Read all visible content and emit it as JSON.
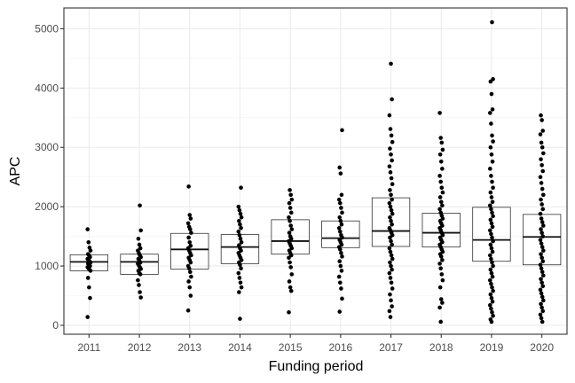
{
  "chart_data": {
    "type": "box",
    "xlabel": "Funding period",
    "ylabel": "APC",
    "ylim": [
      -150,
      5350
    ],
    "yticks": [
      "0",
      "1000",
      "2000",
      "3000",
      "4000",
      "5000"
    ],
    "grid": true,
    "categories": [
      "2011",
      "2012",
      "2013",
      "2014",
      "2015",
      "2016",
      "2017",
      "2018",
      "2019",
      "2020"
    ],
    "boxes": [
      {
        "q1": 920,
        "median": 1070,
        "q3": 1190,
        "low": 920,
        "high": 1200
      },
      {
        "q1": 860,
        "median": 1070,
        "q3": 1200,
        "low": 860,
        "high": 1220
      },
      {
        "q1": 950,
        "median": 1280,
        "q3": 1550,
        "low": 950,
        "high": 1560
      },
      {
        "q1": 1040,
        "median": 1320,
        "q3": 1530,
        "low": 1040,
        "high": 1540
      },
      {
        "q1": 1200,
        "median": 1420,
        "q3": 1780,
        "low": 1200,
        "high": 1790
      },
      {
        "q1": 1310,
        "median": 1470,
        "q3": 1760,
        "low": 1310,
        "high": 1770
      },
      {
        "q1": 1330,
        "median": 1590,
        "q3": 2150,
        "low": 1330,
        "high": 2150
      },
      {
        "q1": 1320,
        "median": 1560,
        "q3": 1890,
        "low": 1320,
        "high": 1890
      },
      {
        "q1": 1080,
        "median": 1440,
        "q3": 1990,
        "low": 1080,
        "high": 1990
      },
      {
        "q1": 1020,
        "median": 1490,
        "q3": 1870,
        "low": 1020,
        "high": 1870
      }
    ],
    "points": [
      {
        "category": "2011",
        "y": [
          1620,
          1400,
          1310,
          1260,
          1200,
          1180,
          1150,
          1120,
          1100,
          1080,
          1060,
          1040,
          1020,
          1000,
          980,
          960,
          940,
          920,
          800,
          640,
          460,
          140
        ]
      },
      {
        "category": "2012",
        "y": [
          2020,
          1600,
          1460,
          1360,
          1300,
          1260,
          1220,
          1180,
          1150,
          1120,
          1090,
          1060,
          1040,
          1010,
          980,
          950,
          920,
          880,
          860,
          760,
          680,
          560,
          470
        ]
      },
      {
        "category": "2013",
        "y": [
          2340,
          1860,
          1800,
          1720,
          1660,
          1620,
          1560,
          1480,
          1400,
          1340,
          1300,
          1260,
          1220,
          1180,
          1140,
          1100,
          1060,
          1000,
          960,
          900,
          820,
          740,
          640,
          500,
          250
        ]
      },
      {
        "category": "2014",
        "y": [
          2320,
          2000,
          1940,
          1880,
          1820,
          1760,
          1700,
          1640,
          1580,
          1520,
          1460,
          1400,
          1350,
          1300,
          1260,
          1220,
          1180,
          1140,
          1100,
          1060,
          1020,
          960,
          880,
          800,
          720,
          640,
          560,
          110
        ]
      },
      {
        "category": "2015",
        "y": [
          2280,
          2200,
          2120,
          2060,
          1980,
          1900,
          1820,
          1760,
          1680,
          1620,
          1560,
          1500,
          1460,
          1420,
          1380,
          1340,
          1300,
          1260,
          1220,
          1180,
          1140,
          1060,
          980,
          860,
          740,
          640,
          580,
          220
        ]
      },
      {
        "category": "2016",
        "y": [
          3290,
          2660,
          2560,
          2200,
          2120,
          2060,
          1980,
          1900,
          1820,
          1760,
          1700,
          1640,
          1580,
          1520,
          1480,
          1440,
          1400,
          1360,
          1320,
          1280,
          1220,
          1160,
          1080,
          1000,
          920,
          820,
          720,
          620,
          450,
          230
        ]
      },
      {
        "category": "2017",
        "y": [
          4410,
          3810,
          3540,
          3310,
          3200,
          3090,
          2980,
          2880,
          2780,
          2680,
          2580,
          2480,
          2380,
          2280,
          2200,
          2120,
          2060,
          2000,
          1940,
          1880,
          1820,
          1760,
          1700,
          1640,
          1600,
          1560,
          1520,
          1480,
          1420,
          1360,
          1300,
          1240,
          1180,
          1120,
          1060,
          1000,
          940,
          880,
          800,
          720,
          620,
          520,
          420,
          320,
          240,
          140
        ]
      },
      {
        "category": "2018",
        "y": [
          3580,
          3160,
          3080,
          2960,
          2880,
          2760,
          2640,
          2520,
          2420,
          2320,
          2240,
          2160,
          2080,
          2020,
          1960,
          1900,
          1850,
          1800,
          1760,
          1720,
          1680,
          1640,
          1600,
          1560,
          1520,
          1480,
          1440,
          1400,
          1360,
          1320,
          1280,
          1240,
          1200,
          1160,
          1100,
          1040,
          960,
          860,
          760,
          640,
          440,
          380,
          300,
          60
        ]
      },
      {
        "category": "2019",
        "y": [
          5110,
          4150,
          4110,
          3900,
          3640,
          3580,
          3400,
          3200,
          3100,
          3000,
          2880,
          2760,
          2640,
          2520,
          2420,
          2320,
          2240,
          2160,
          2080,
          2020,
          1960,
          1900,
          1840,
          1780,
          1720,
          1660,
          1600,
          1540,
          1480,
          1420,
          1360,
          1300,
          1240,
          1180,
          1120,
          1060,
          1000,
          940,
          880,
          820,
          760,
          700,
          640,
          580,
          520,
          460,
          400,
          340,
          280,
          220,
          160,
          100,
          60
        ]
      },
      {
        "category": "2020",
        "y": [
          3540,
          3460,
          3280,
          3220,
          3080,
          3000,
          2900,
          2800,
          2700,
          2600,
          2500,
          2400,
          2300,
          2200,
          2120,
          2040,
          1960,
          1880,
          1800,
          1740,
          1680,
          1620,
          1560,
          1500,
          1440,
          1380,
          1320,
          1260,
          1200,
          1140,
          1080,
          1020,
          960,
          900,
          840,
          780,
          720,
          660,
          600,
          540,
          480,
          420,
          360,
          300,
          240,
          180,
          120,
          60
        ]
      }
    ]
  }
}
